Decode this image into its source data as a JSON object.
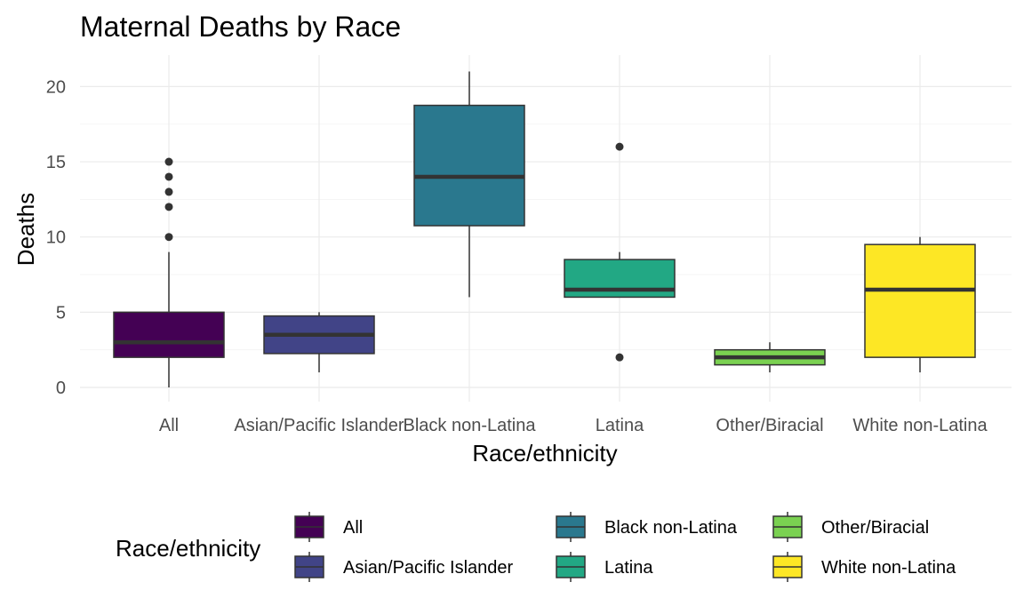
{
  "chart_data": {
    "type": "box",
    "title": "Maternal Deaths by Race",
    "xlabel": "Race/ethnicity",
    "ylabel": "Deaths",
    "ylim": [
      -1,
      22
    ],
    "yticks": [
      0,
      5,
      10,
      15,
      20
    ],
    "grid": true,
    "legend_position": "bottom",
    "legend_title": "Race/ethnicity",
    "categories": [
      "All",
      "Asian/Pacific Islander",
      "Black non-Latina",
      "Latina",
      "Other/Biracial",
      "White non-Latina"
    ],
    "colors": [
      "#440154",
      "#414487",
      "#2A788E",
      "#22A884",
      "#7AD151",
      "#FDE725"
    ],
    "boxes": [
      {
        "category": "All",
        "min": 0,
        "q1": 2,
        "median": 3,
        "q3": 5,
        "max": 9,
        "outliers": [
          10,
          12,
          13,
          14,
          15
        ]
      },
      {
        "category": "Asian/Pacific Islander",
        "min": 1,
        "q1": 2.25,
        "median": 3.5,
        "q3": 4.75,
        "max": 5,
        "outliers": []
      },
      {
        "category": "Black non-Latina",
        "min": 6,
        "q1": 10.75,
        "median": 14,
        "q3": 18.75,
        "max": 21,
        "outliers": []
      },
      {
        "category": "Latina",
        "min": 6,
        "q1": 6,
        "median": 6.5,
        "q3": 8.5,
        "max": 9,
        "outliers": [
          2,
          16
        ]
      },
      {
        "category": "Other/Biracial",
        "min": 1,
        "q1": 1.5,
        "median": 2,
        "q3": 2.5,
        "max": 3,
        "outliers": []
      },
      {
        "category": "White non-Latina",
        "min": 1,
        "q1": 2,
        "median": 6.5,
        "q3": 9.5,
        "max": 10,
        "outliers": []
      }
    ]
  }
}
